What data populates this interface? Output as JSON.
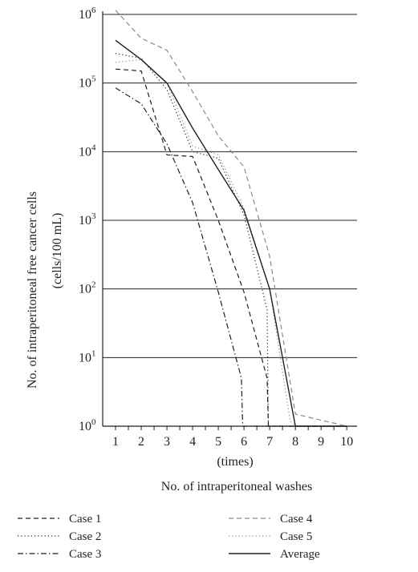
{
  "chart_data": {
    "type": "line",
    "title": "",
    "xlabel": "No. of intraperitoneal washes",
    "xlabel_sub": "(times)",
    "ylabel": "No. of intraperitoneal free cancer cells",
    "ylabel_sub": "(cells/100 mL)",
    "y_scale": "log10",
    "ylim": [
      1,
      1000000
    ],
    "xlim": [
      0.5,
      10.4
    ],
    "grid": "horizontal",
    "legend_position": "bottom",
    "x_ticks": [
      "1",
      "2",
      "3",
      "4",
      "5",
      "6",
      "7",
      "8",
      "9",
      "10"
    ],
    "y_ticks": [
      {
        "base": "10",
        "exp": "0"
      },
      {
        "base": "10",
        "exp": "1"
      },
      {
        "base": "10",
        "exp": "2"
      },
      {
        "base": "10",
        "exp": "3"
      },
      {
        "base": "10",
        "exp": "4"
      },
      {
        "base": "10",
        "exp": "5"
      },
      {
        "base": "10",
        "exp": "6"
      }
    ],
    "series": [
      {
        "name": "Case 1",
        "style": "dashed",
        "color": "#231f20",
        "points": [
          [
            1,
            160000
          ],
          [
            2,
            150000
          ],
          [
            3,
            9000
          ],
          [
            4,
            8500
          ],
          [
            5,
            1000
          ],
          [
            6,
            90
          ],
          [
            6.9,
            5
          ],
          [
            6.95,
            1
          ],
          [
            10,
            1
          ]
        ]
      },
      {
        "name": "Case 2",
        "style": "dotted",
        "color": "#231f20",
        "points": [
          [
            1,
            270000
          ],
          [
            2,
            230000
          ],
          [
            3,
            80000
          ],
          [
            4,
            10000
          ],
          [
            5,
            8000
          ],
          [
            6,
            1200
          ],
          [
            6.9,
            50
          ],
          [
            6.95,
            1
          ],
          [
            10,
            1
          ]
        ]
      },
      {
        "name": "Case 3",
        "style": "dashdot",
        "color": "#231f20",
        "points": [
          [
            1,
            85000
          ],
          [
            2,
            50000
          ],
          [
            3,
            13000
          ],
          [
            4,
            1800
          ],
          [
            5,
            90
          ],
          [
            5.9,
            5
          ],
          [
            5.95,
            1
          ],
          [
            10,
            1
          ]
        ]
      },
      {
        "name": "Case 4",
        "style": "dashed",
        "color": "#8a8a8a",
        "points": [
          [
            1,
            1150000
          ],
          [
            2,
            450000
          ],
          [
            3,
            300000
          ],
          [
            4,
            75000
          ],
          [
            5,
            17000
          ],
          [
            6,
            6000
          ],
          [
            7,
            300
          ],
          [
            8,
            1.5
          ],
          [
            10,
            1
          ]
        ]
      },
      {
        "name": "Case 5",
        "style": "dotted",
        "color": "#8a8a8a",
        "points": [
          [
            1,
            200000
          ],
          [
            2,
            220000
          ],
          [
            3,
            100000
          ],
          [
            4,
            12000
          ],
          [
            5,
            9000
          ],
          [
            6,
            1500
          ],
          [
            7,
            100
          ],
          [
            7.8,
            1.2
          ],
          [
            8,
            1
          ],
          [
            10,
            1
          ]
        ]
      },
      {
        "name": "Average",
        "style": "solid",
        "color": "#231f20",
        "points": [
          [
            1,
            420000
          ],
          [
            2,
            220000
          ],
          [
            3,
            100000
          ],
          [
            4,
            22000
          ],
          [
            5,
            5500
          ],
          [
            6,
            1400
          ],
          [
            7,
            100
          ],
          [
            8,
            1
          ],
          [
            10,
            1
          ]
        ]
      }
    ]
  }
}
